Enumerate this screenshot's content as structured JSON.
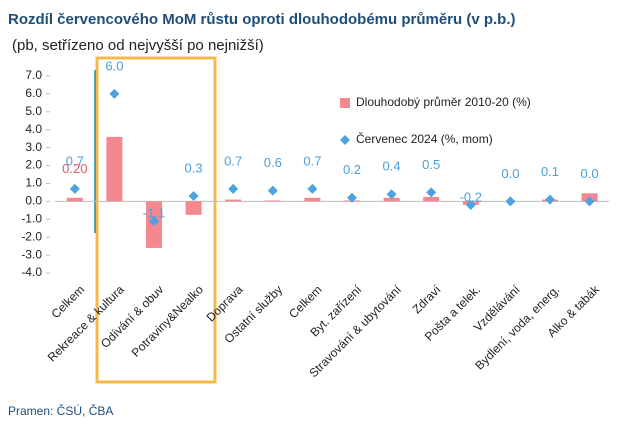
{
  "chart_data": {
    "type": "bar-scatter",
    "title": "Rozdíl červencového MoM růstu oproti dlouhodobému průměru (v p.b.)",
    "subtitle": "(pb, setřízeno od nejvyšší po nejnižší)",
    "source": "Pramen: ČSÚ, ČBA",
    "categories": [
      "Celkem",
      "Rekreace & kultura",
      "Odívání & obuv",
      "Potraviny&Nealko",
      "Doprava",
      "Ostatní služby",
      "Celkem",
      "Byt. zařízení",
      "Stravování & ubytování",
      "Zdraví",
      "Pošta a telek.",
      "Vzdělávání",
      "Bydlení, voda, energ.",
      "Alko & tabák"
    ],
    "series": [
      {
        "name": "Dlouhodobý průměr 2010-20 (%)",
        "color": "#f4878f",
        "label_color": "#e05a64",
        "values": [
          0.2,
          3.6,
          -2.6,
          -0.75,
          0.1,
          0.05,
          0.2,
          0.05,
          0.2,
          0.25,
          -0.2,
          0.0,
          0.1,
          0.45
        ],
        "value_labels": [
          "0.20",
          null,
          null,
          null,
          null,
          null,
          null,
          null,
          null,
          null,
          null,
          null,
          null,
          null
        ]
      },
      {
        "name": "Červenec 2024 (%, mom)",
        "color": "#4da3e0",
        "label_color": "#4a9fd8",
        "values": [
          0.7,
          6,
          -1.1,
          0.3,
          0.7,
          0.6,
          0.7,
          0.2,
          0.4,
          0.5,
          -0.2,
          0,
          0.1,
          0
        ],
        "value_labels": [
          "0.7",
          "6.0",
          "-1.1",
          "0.3",
          "0.7",
          "0.6",
          "0.7",
          "0.2",
          "0.4",
          "0.5",
          "-0.2",
          "0.0",
          "0.1",
          "0.0"
        ]
      }
    ],
    "ylim": [
      -4,
      7
    ],
    "yticks": [
      {
        "value": 7,
        "label": "7.0"
      },
      {
        "value": 6,
        "label": "6.0"
      },
      {
        "value": 5,
        "label": "5.0"
      },
      {
        "value": 4,
        "label": "4.0"
      },
      {
        "value": 3,
        "label": "3.0"
      },
      {
        "value": 2,
        "label": "2.0"
      },
      {
        "value": 1,
        "label": "1.0"
      },
      {
        "value": 0,
        "label": "0.0"
      },
      {
        "value": -1,
        "label": "-1.0"
      },
      {
        "value": -2,
        "label": "-2.0"
      },
      {
        "value": -3,
        "label": "-3.0"
      },
      {
        "value": -4,
        "label": "-4.0"
      }
    ],
    "grid": false
  }
}
